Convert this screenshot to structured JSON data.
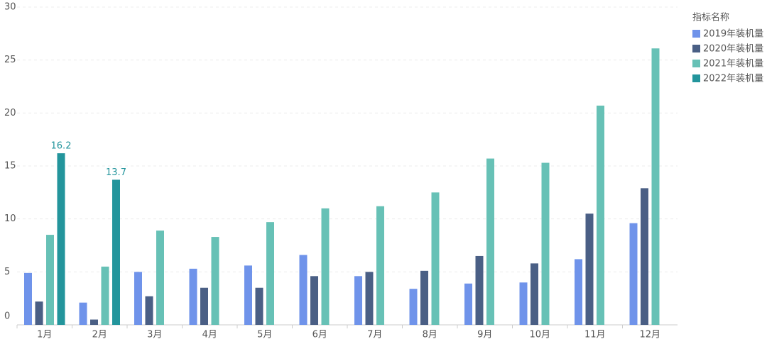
{
  "chart_data": {
    "type": "bar",
    "categories": [
      "1月",
      "2月",
      "3月",
      "4月",
      "5月",
      "6月",
      "7月",
      "8月",
      "9月",
      "10月",
      "11月",
      "12月"
    ],
    "series": [
      {
        "name": "2019年装机量",
        "color": "#6f93ea",
        "values": [
          4.9,
          2.1,
          5.0,
          5.3,
          5.6,
          6.6,
          4.6,
          3.4,
          3.9,
          4.0,
          6.2,
          9.6
        ]
      },
      {
        "name": "2020年装机量",
        "color": "#4a5f85",
        "values": [
          2.2,
          0.5,
          2.7,
          3.5,
          3.5,
          4.6,
          5.0,
          5.1,
          6.5,
          5.8,
          10.5,
          12.9
        ]
      },
      {
        "name": "2021年装机量",
        "color": "#67c1b6",
        "values": [
          8.5,
          5.5,
          8.9,
          8.3,
          9.7,
          11.0,
          11.2,
          12.5,
          15.7,
          15.3,
          20.7,
          26.1
        ]
      },
      {
        "name": "2022年装机量",
        "color": "#23959c",
        "values": [
          16.2,
          13.7,
          null,
          null,
          null,
          null,
          null,
          null,
          null,
          null,
          null,
          null
        ],
        "show_value_labels": true
      }
    ],
    "legend_title": "指标名称",
    "legend_position": "right",
    "ylim": [
      0,
      30
    ],
    "yticks": [
      0,
      5,
      10,
      15,
      20,
      25,
      30
    ],
    "grid": true
  }
}
